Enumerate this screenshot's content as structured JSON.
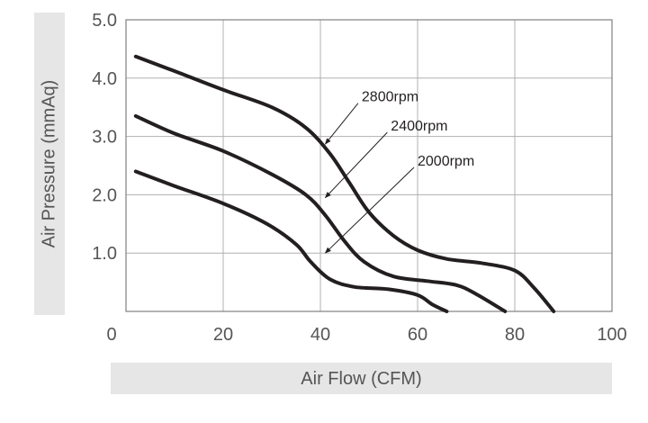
{
  "chart_data": {
    "type": "line",
    "title": "",
    "xlabel": "Air Flow (CFM)",
    "ylabel": "Air Pressure (mmAq)",
    "xlim": [
      0,
      100
    ],
    "ylim": [
      0,
      5
    ],
    "xticks": [
      0,
      20,
      40,
      60,
      80,
      100
    ],
    "xtick_labels": [
      "0",
      "20",
      "40",
      "60",
      "80",
      "100"
    ],
    "yticks": [
      1,
      2,
      3,
      4,
      5
    ],
    "ytick_labels": [
      "1.0",
      "2.0",
      "3.0",
      "4.0",
      "5.0"
    ],
    "grid": true,
    "legend": "none",
    "line_color": "#231f20",
    "series": [
      {
        "name": "2800rpm",
        "points": [
          [
            2,
            4.37
          ],
          [
            10,
            4.12
          ],
          [
            20,
            3.8
          ],
          [
            30,
            3.5
          ],
          [
            37,
            3.15
          ],
          [
            42,
            2.7
          ],
          [
            46,
            2.2
          ],
          [
            50,
            1.7
          ],
          [
            55,
            1.3
          ],
          [
            60,
            1.05
          ],
          [
            66,
            0.9
          ],
          [
            73,
            0.83
          ],
          [
            80,
            0.7
          ],
          [
            84,
            0.4
          ],
          [
            88,
            0.0
          ]
        ]
      },
      {
        "name": "2400rpm",
        "points": [
          [
            2,
            3.35
          ],
          [
            10,
            3.05
          ],
          [
            20,
            2.75
          ],
          [
            30,
            2.35
          ],
          [
            37,
            2.0
          ],
          [
            41,
            1.65
          ],
          [
            45,
            1.2
          ],
          [
            49,
            0.85
          ],
          [
            55,
            0.6
          ],
          [
            62,
            0.52
          ],
          [
            68,
            0.45
          ],
          [
            72,
            0.3
          ],
          [
            78,
            0.0
          ]
        ]
      },
      {
        "name": "2000rpm",
        "points": [
          [
            2,
            2.4
          ],
          [
            10,
            2.15
          ],
          [
            20,
            1.85
          ],
          [
            29,
            1.5
          ],
          [
            35,
            1.15
          ],
          [
            38,
            0.85
          ],
          [
            42,
            0.55
          ],
          [
            47,
            0.42
          ],
          [
            54,
            0.38
          ],
          [
            60,
            0.28
          ],
          [
            63,
            0.12
          ],
          [
            66,
            0.0
          ]
        ]
      }
    ],
    "annotations": [
      {
        "text": "2800rpm",
        "label_at": [
          48.5,
          3.6
        ],
        "arrow_to": [
          41,
          2.87
        ]
      },
      {
        "text": "2400rpm",
        "label_at": [
          54.5,
          3.1
        ],
        "arrow_to": [
          41,
          1.95
        ]
      },
      {
        "text": "2000rpm",
        "label_at": [
          60,
          2.5
        ],
        "arrow_to": [
          41,
          1.0
        ]
      }
    ]
  }
}
